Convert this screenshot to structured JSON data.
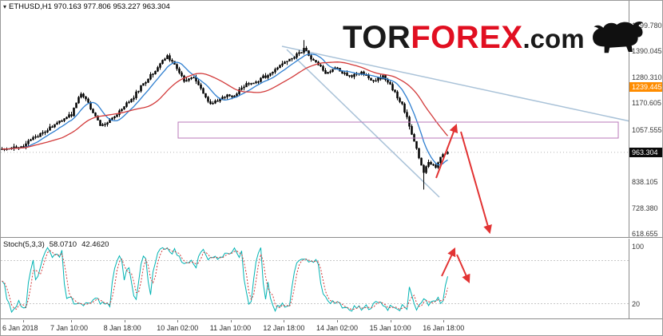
{
  "header": {
    "symbol_info": "ETHUSD,H1 970.163 977.806 953.227 963.304",
    "marker": "▾"
  },
  "logo": {
    "part1": "TOR",
    "part2": "FOREX",
    "part3": ".com"
  },
  "colors": {
    "candle": "#000000",
    "ma_fast": "#2f7fd0",
    "ma_slow": "#d23a3a",
    "trendline": "#a9c2d8",
    "rectangle": "#b87ab8",
    "arrow": "#e23333",
    "stoch_main": "#00b3b3",
    "stoch_signal": "#d23a3a",
    "ask_bg": "#ff8c00",
    "bid_bg": "#0a0a0a"
  },
  "chart_data": {
    "type": "candlestick",
    "symbol": "ETHUSD",
    "timeframe": "H1",
    "ohlc": {
      "open": 970.163,
      "high": 977.806,
      "low": 953.227,
      "close": 963.304
    },
    "candles": 187,
    "last_close": 963.304,
    "spike_low": 806,
    "spike_high": 1438,
    "y_axis": {
      "range": [
        602,
        1604
      ],
      "labels": [
        "1499.780",
        "1390.045",
        "1280.310",
        "1170.605",
        "1057.555",
        "838.105",
        "728.380",
        "618.655"
      ],
      "ask_label": "1239.445",
      "bid_label": "963.304"
    },
    "x_axis": {
      "labels": [
        "6 Jan 2018",
        "7 Jan 10:00",
        "8 Jan 18:00",
        "10 Jan 02:00",
        "11 Jan 10:00",
        "12 Jan 18:00",
        "14 Jan 02:00",
        "15 Jan 10:00",
        "16 Jan 18:00"
      ]
    },
    "price_path": [
      [
        0,
        975
      ],
      [
        8,
        988
      ],
      [
        16,
        1040
      ],
      [
        24,
        1095
      ],
      [
        29,
        1125
      ],
      [
        33,
        1215
      ],
      [
        36,
        1170
      ],
      [
        41,
        1080
      ],
      [
        45,
        1098
      ],
      [
        50,
        1150
      ],
      [
        55,
        1200
      ],
      [
        60,
        1265
      ],
      [
        65,
        1320
      ],
      [
        69,
        1372
      ],
      [
        72,
        1335
      ],
      [
        76,
        1268
      ],
      [
        80,
        1285
      ],
      [
        84,
        1215
      ],
      [
        87,
        1165
      ],
      [
        92,
        1198
      ],
      [
        97,
        1205
      ],
      [
        102,
        1250
      ],
      [
        107,
        1268
      ],
      [
        112,
        1300
      ],
      [
        117,
        1335
      ],
      [
        122,
        1370
      ],
      [
        126,
        1398
      ],
      [
        130,
        1350
      ],
      [
        135,
        1300
      ],
      [
        140,
        1318
      ],
      [
        145,
        1285
      ],
      [
        150,
        1300
      ],
      [
        155,
        1268
      ],
      [
        159,
        1285
      ],
      [
        163,
        1232
      ],
      [
        167,
        1165
      ],
      [
        170,
        1080
      ],
      [
        173,
        978
      ],
      [
        176,
        872
      ],
      [
        178,
        928
      ],
      [
        181,
        895
      ],
      [
        183,
        945
      ],
      [
        186,
        963
      ]
    ],
    "annotations": {
      "trendlines": [
        [
          352,
          57,
          788,
          151
        ],
        [
          358,
          61,
          549,
          246
        ]
      ],
      "rectangle": [
        222,
        152,
        551,
        20
      ],
      "arrows_main": [
        [
          545,
          222,
          570,
          156
        ],
        [
          576,
          164,
          612,
          290
        ]
      ],
      "arrows_stoch": [
        [
          552,
          47,
          568,
          13
        ],
        [
          571,
          20,
          586,
          54
        ]
      ]
    },
    "stochastic": {
      "label": "Stoch(5,3,3)",
      "main_value": "58.0710",
      "signal_value": "42.4620",
      "scale_labels": [
        100,
        20
      ],
      "level_lines": [
        80,
        20
      ],
      "range": [
        0,
        100
      ]
    }
  }
}
